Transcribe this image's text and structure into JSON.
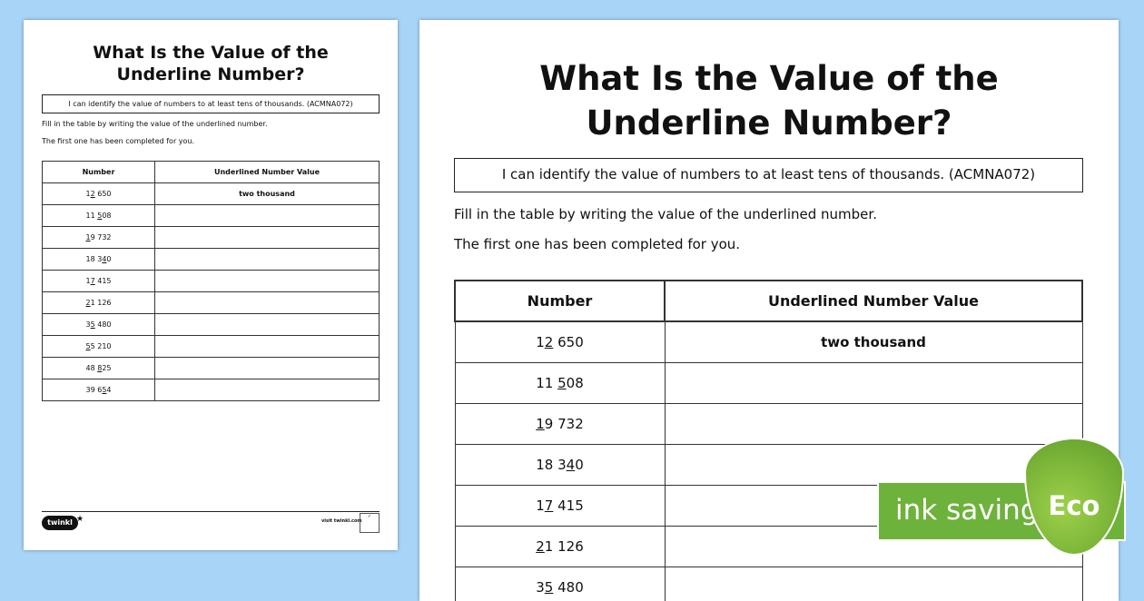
{
  "worksheet": {
    "title_line1": "What Is the Value of the",
    "title_line2": "Underline Number?",
    "objective": "I can identify the value of numbers to at least tens of thousands. (ACMNA072)",
    "instruction1": "Fill in the table by writing the value of the underlined number.",
    "instruction2": "The first one has been completed for you.",
    "headers": [
      "Number",
      "Underlined Number Value"
    ],
    "rows": [
      {
        "pre": "1",
        "u": "2",
        "post": " 650",
        "value": "two thousand"
      },
      {
        "pre": "11 ",
        "u": "5",
        "post": "08",
        "value": ""
      },
      {
        "pre": "",
        "u": "1",
        "post": "9 732",
        "value": ""
      },
      {
        "pre": "18 3",
        "u": "4",
        "post": "0",
        "value": ""
      },
      {
        "pre": "1",
        "u": "7",
        "post": " 415",
        "value": ""
      },
      {
        "pre": "",
        "u": "2",
        "post": "1 126",
        "value": ""
      },
      {
        "pre": "3",
        "u": "5",
        "post": " 480",
        "value": ""
      },
      {
        "pre": "",
        "u": "5",
        "post": "5 210",
        "value": ""
      },
      {
        "pre": "48 ",
        "u": "8",
        "post": "25",
        "value": ""
      },
      {
        "pre": "39 6",
        "u": "5",
        "post": "4",
        "value": ""
      }
    ],
    "right_visible_rows": 6
  },
  "footer": {
    "logo": "twinkl",
    "visit": "visit twinkl.com"
  },
  "eco_badge": {
    "label": "ink saving",
    "eco": "Eco",
    "color": "#6db23a"
  }
}
